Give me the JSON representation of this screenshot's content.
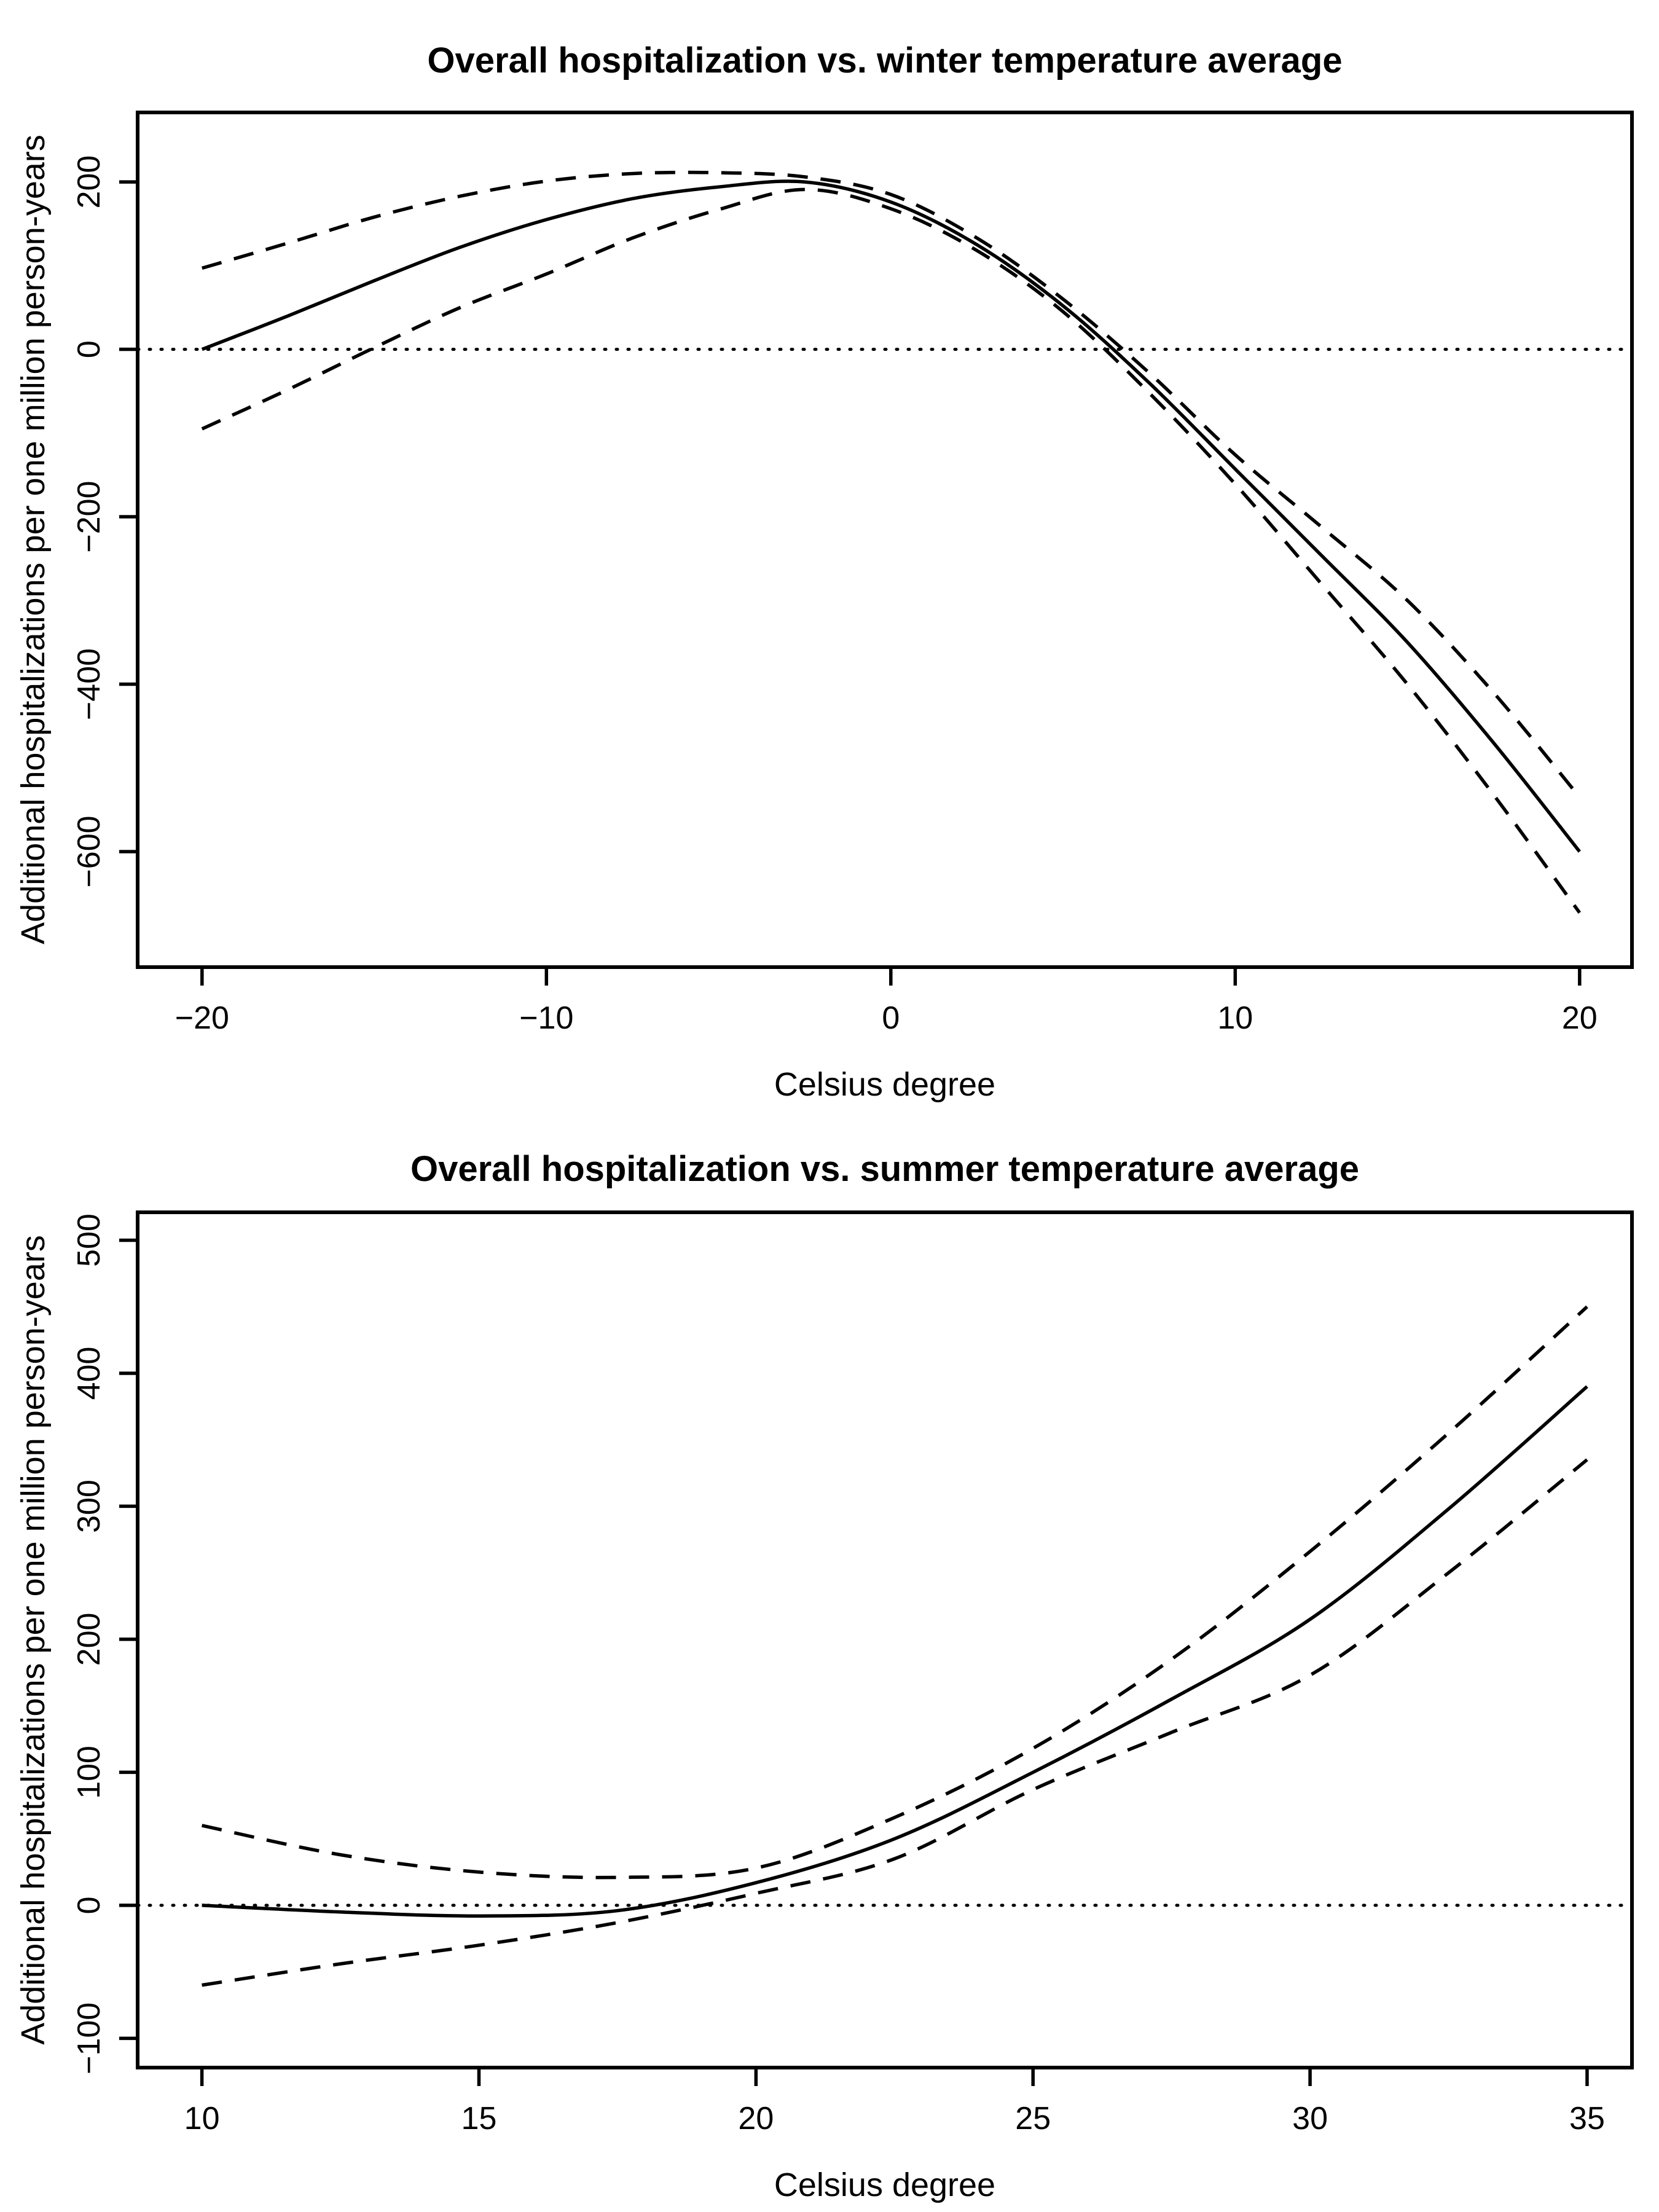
{
  "page": {
    "background": "#ffffff",
    "foreground": "#000000"
  },
  "chart_data": [
    {
      "type": "line",
      "title": "Overall hospitalization vs. winter temperature average",
      "xlabel": "Celsius degree",
      "ylabel": "Additional hospitalizations per one million person-years",
      "line_color": "#000000",
      "grid": false,
      "legend": null,
      "xlim": [
        -21.87,
        21.52
      ],
      "ylim": [
        -738,
        283
      ],
      "x_ticks": [
        {
          "v": -20,
          "label": "−20"
        },
        {
          "v": -10,
          "label": "−10"
        },
        {
          "v": 0,
          "label": "0"
        },
        {
          "v": 10,
          "label": "10"
        },
        {
          "v": 20,
          "label": "20"
        }
      ],
      "y_ticks": [
        {
          "v": -600,
          "label": "−600"
        },
        {
          "v": -400,
          "label": "−400"
        },
        {
          "v": -200,
          "label": "−200"
        },
        {
          "v": 0,
          "label": "0"
        },
        {
          "v": 200,
          "label": "200"
        }
      ],
      "reference_line": {
        "y": 0,
        "style": "dotted"
      },
      "x": [
        -20,
        -17.5,
        -15,
        -12.5,
        -10,
        -7.5,
        -5,
        -2.5,
        0,
        2.5,
        5,
        7.5,
        10,
        12.5,
        15,
        17.5,
        20
      ],
      "series": [
        {
          "name": "estimate",
          "style": "solid",
          "values": [
            0,
            40,
            82,
            122,
            155,
            180,
            194,
            200,
            176,
            125,
            52,
            -40,
            -143,
            -246,
            -350,
            -470,
            -600
          ]
        },
        {
          "name": "upper confidence band",
          "style": "dashed",
          "values": [
            97,
            127,
            158,
            183,
            201,
            210,
            211,
            206,
            185,
            133,
            60,
            -28,
            -126,
            -212,
            -300,
            -410,
            -535
          ]
        },
        {
          "name": "lower confidence band",
          "style": "dashed",
          "values": [
            -95,
            -48,
            2,
            50,
            90,
            133,
            167,
            191,
            168,
            118,
            45,
            -52,
            -161,
            -280,
            -400,
            -532,
            -673
          ]
        }
      ]
    },
    {
      "type": "line",
      "title": "Overall hospitalization vs. summer temperature average",
      "xlabel": "Celsius degree",
      "ylabel": "Additional hospitalizations per one million person-years",
      "line_color": "#000000",
      "grid": false,
      "legend": null,
      "xlim": [
        8.84,
        35.81
      ],
      "ylim": [
        -122,
        521
      ],
      "x_ticks": [
        {
          "v": 10,
          "label": "10"
        },
        {
          "v": 15,
          "label": "15"
        },
        {
          "v": 20,
          "label": "20"
        },
        {
          "v": 25,
          "label": "25"
        },
        {
          "v": 30,
          "label": "30"
        },
        {
          "v": 35,
          "label": "35"
        }
      ],
      "y_ticks": [
        {
          "v": -100,
          "label": "−100"
        },
        {
          "v": 0,
          "label": "0"
        },
        {
          "v": 100,
          "label": "100"
        },
        {
          "v": 200,
          "label": "200"
        },
        {
          "v": 300,
          "label": "300"
        },
        {
          "v": 400,
          "label": "400"
        },
        {
          "v": 500,
          "label": "500"
        }
      ],
      "reference_line": {
        "y": 0,
        "style": "dotted"
      },
      "x": [
        10,
        12.5,
        15,
        17.5,
        20,
        22.5,
        25,
        27.5,
        30,
        32.5,
        35
      ],
      "series": [
        {
          "name": "estimate",
          "style": "solid",
          "values": [
            0,
            -5,
            -8,
            -4,
            17,
            50,
            100,
            155,
            215,
            298,
            390
          ]
        },
        {
          "name": "upper confidence band",
          "style": "dashed",
          "values": [
            60,
            38,
            25,
            21,
            28,
            66,
            118,
            185,
            266,
            355,
            450
          ]
        },
        {
          "name": "lower confidence band",
          "style": "dashed",
          "values": [
            -60,
            -44,
            -30,
            -13,
            9,
            35,
            87,
            130,
            173,
            250,
            335
          ]
        }
      ]
    }
  ]
}
